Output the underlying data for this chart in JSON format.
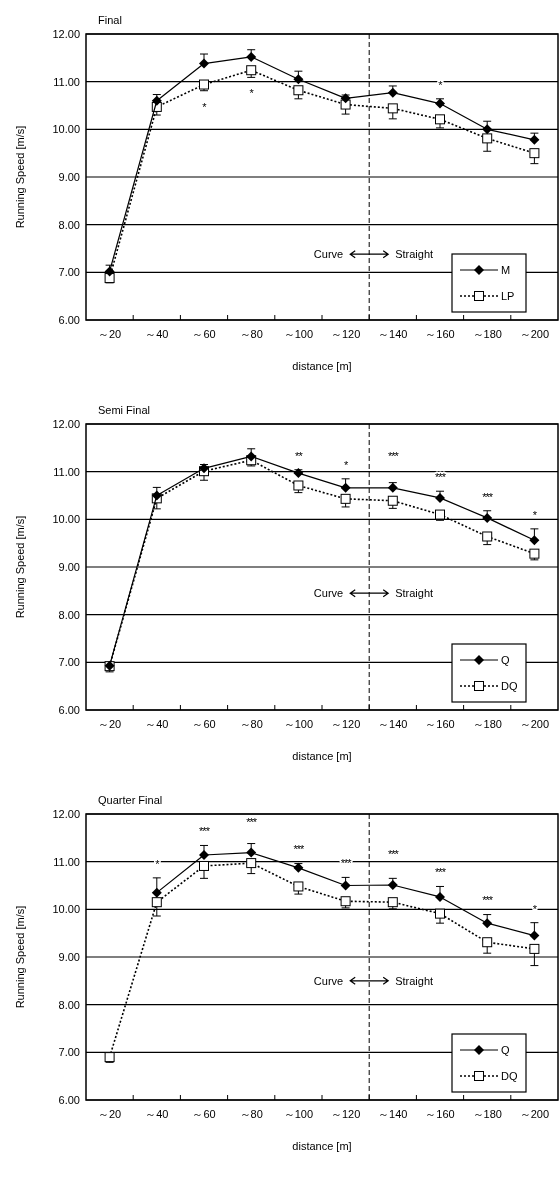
{
  "chart_data": [
    {
      "type": "line",
      "title": "Final",
      "xlabel": "distance [m]",
      "ylabel": "Running Speed [m/s]",
      "x": [
        20,
        40,
        60,
        80,
        100,
        120,
        140,
        160,
        180,
        200
      ],
      "xlim": [
        10,
        210
      ],
      "xticks": [
        {
          "value": 20,
          "label": "～20"
        },
        {
          "value": 40,
          "label": "～40"
        },
        {
          "value": 60,
          "label": "～60"
        },
        {
          "value": 80,
          "label": "～80"
        },
        {
          "value": 100,
          "label": "～100"
        },
        {
          "value": 120,
          "label": "～120"
        },
        {
          "value": 140,
          "label": "～140"
        },
        {
          "value": 160,
          "label": "～160"
        },
        {
          "value": 180,
          "label": "～180"
        },
        {
          "value": 200,
          "label": "～200"
        },
        {
          "value": 30,
          "label": null
        },
        {
          "value": 50,
          "label": null
        },
        {
          "value": 70,
          "label": null
        },
        {
          "value": 90,
          "label": null
        },
        {
          "value": 110,
          "label": null
        },
        {
          "value": 130,
          "label": null
        },
        {
          "value": 150,
          "label": null
        },
        {
          "value": 170,
          "label": null
        },
        {
          "value": 190,
          "label": null
        }
      ],
      "ylim": [
        6,
        12
      ],
      "yticks": [
        {
          "value": 6,
          "label": "6.00"
        },
        {
          "value": 7,
          "label": "7.00"
        },
        {
          "value": 8,
          "label": "8.00"
        },
        {
          "value": 9,
          "label": "9.00"
        },
        {
          "value": 10,
          "label": "10.00"
        },
        {
          "value": 11,
          "label": "11.00"
        },
        {
          "value": 12,
          "label": "12.00"
        }
      ],
      "grid": "y",
      "legend": "bottom right",
      "series": [
        {
          "name": "M",
          "color": "#000000",
          "marker": "diamond",
          "line_style": "solid",
          "values": [
            7.02,
            10.6,
            11.38,
            11.52,
            11.05,
            10.65,
            10.77,
            10.54,
            10.0,
            9.78
          ],
          "errors": [
            [
              7.02,
              7.15
            ],
            [
              10.6,
              10.73
            ],
            [
              11.38,
              11.58
            ],
            [
              11.52,
              11.67
            ],
            [
              11.05,
              11.22
            ],
            [
              10.65,
              10.72
            ],
            [
              10.77,
              10.91
            ],
            [
              10.54,
              10.64
            ],
            [
              10.0,
              10.17
            ],
            [
              9.78,
              9.92
            ]
          ]
        },
        {
          "name": "LP",
          "color": "#000000",
          "marker": "square",
          "line_style": "dotted",
          "values": [
            6.88,
            10.47,
            10.94,
            11.24,
            10.82,
            10.52,
            10.44,
            10.21,
            9.81,
            9.5
          ],
          "errors": [
            [
              6.78,
              6.88
            ],
            [
              10.3,
              10.47
            ],
            [
              10.81,
              10.94
            ],
            [
              11.09,
              11.24
            ],
            [
              10.64,
              10.82
            ],
            [
              10.32,
              10.52
            ],
            [
              10.22,
              10.44
            ],
            [
              10.03,
              10.21
            ],
            [
              9.54,
              9.81
            ],
            [
              9.28,
              9.5
            ]
          ]
        }
      ],
      "ref_lines": [
        {
          "axis": "x",
          "value": 130,
          "line_style": "dashed",
          "color": "#000000"
        }
      ],
      "annotations": [
        {
          "text": "Curve",
          "x": 130,
          "y": 7.38
        },
        {
          "text": "Straight",
          "x": 130,
          "y": 7.38
        },
        {
          "text": "*",
          "x": 60,
          "y": 10.94
        },
        {
          "text": "*",
          "x": 80,
          "y": 11.24
        },
        {
          "text": "*",
          "x": 160,
          "y": 10.54
        }
      ]
    },
    {
      "type": "line",
      "title": "Semi Final",
      "xlabel": "distance [m]",
      "ylabel": "Running Speed [m/s]",
      "x": [
        20,
        40,
        60,
        80,
        100,
        120,
        140,
        160,
        180,
        200
      ],
      "xlim": [
        10,
        210
      ],
      "xticks": [
        {
          "value": 20,
          "label": "～20"
        },
        {
          "value": 40,
          "label": "～40"
        },
        {
          "value": 60,
          "label": "～60"
        },
        {
          "value": 80,
          "label": "～80"
        },
        {
          "value": 100,
          "label": "～100"
        },
        {
          "value": 120,
          "label": "～120"
        },
        {
          "value": 140,
          "label": "～140"
        },
        {
          "value": 160,
          "label": "～160"
        },
        {
          "value": 180,
          "label": "～180"
        },
        {
          "value": 200,
          "label": "～200"
        },
        {
          "value": 30,
          "label": null
        },
        {
          "value": 50,
          "label": null
        },
        {
          "value": 70,
          "label": null
        },
        {
          "value": 90,
          "label": null
        },
        {
          "value": 110,
          "label": null
        },
        {
          "value": 130,
          "label": null
        },
        {
          "value": 150,
          "label": null
        },
        {
          "value": 170,
          "label": null
        },
        {
          "value": 190,
          "label": null
        }
      ],
      "ylim": [
        6,
        12
      ],
      "yticks": [
        {
          "value": 6,
          "label": "6.00"
        },
        {
          "value": 7,
          "label": "7.00"
        },
        {
          "value": 8,
          "label": "8.00"
        },
        {
          "value": 9,
          "label": "9.00"
        },
        {
          "value": 10,
          "label": "10.00"
        },
        {
          "value": 11,
          "label": "11.00"
        },
        {
          "value": 12,
          "label": "12.00"
        }
      ],
      "grid": "y",
      "legend": "bottom right",
      "series": [
        {
          "name": "Q",
          "color": "#000000",
          "marker": "diamond",
          "line_style": "solid",
          "values": [
            6.93,
            10.5,
            11.07,
            11.32,
            10.97,
            10.66,
            10.66,
            10.45,
            10.03,
            9.56
          ],
          "errors": [
            null,
            [
              10.5,
              10.67
            ],
            [
              11.07,
              11.15
            ],
            [
              11.32,
              11.48
            ],
            [
              10.97,
              11.04
            ],
            [
              10.66,
              10.85
            ],
            [
              10.66,
              10.77
            ],
            [
              10.45,
              10.59
            ],
            [
              10.03,
              10.18
            ],
            [
              9.56,
              9.8
            ]
          ]
        },
        {
          "name": "DQ",
          "color": "#000000",
          "marker": "square",
          "line_style": "dotted",
          "values": [
            6.92,
            10.44,
            11.01,
            11.24,
            10.71,
            10.43,
            10.39,
            10.1,
            9.64,
            9.28
          ],
          "errors": [
            [
              6.8,
              6.92
            ],
            [
              10.22,
              10.44
            ],
            [
              10.82,
              11.01
            ],
            [
              11.12,
              11.24
            ],
            [
              10.56,
              10.71
            ],
            [
              10.26,
              10.43
            ],
            [
              10.23,
              10.39
            ],
            [
              9.98,
              10.1
            ],
            [
              9.47,
              9.64
            ],
            [
              9.15,
              9.28
            ]
          ]
        }
      ],
      "ref_lines": [
        {
          "axis": "x",
          "value": 130,
          "line_style": "dashed",
          "color": "#000000"
        }
      ],
      "annotations": [
        {
          "text": "Curve",
          "x": 130,
          "y": 8.45
        },
        {
          "text": "Straight",
          "x": 130,
          "y": 8.45
        },
        {
          "text": "**",
          "x": 100,
          "y": 10.97
        },
        {
          "text": "*",
          "x": 120,
          "y": 10.66
        },
        {
          "text": "***",
          "x": 140,
          "y": 10.66
        },
        {
          "text": "***",
          "x": 160,
          "y": 10.45
        },
        {
          "text": "***",
          "x": 180,
          "y": 10.03
        },
        {
          "text": "*",
          "x": 200,
          "y": 9.56
        }
      ]
    },
    {
      "type": "line",
      "title": "Quarter Final",
      "xlabel": "distance [m]",
      "ylabel": "Running Speed [m/s]",
      "x": [
        20,
        40,
        60,
        80,
        100,
        120,
        140,
        160,
        180,
        200
      ],
      "xlim": [
        10,
        210
      ],
      "xticks": [
        {
          "value": 20,
          "label": "～20"
        },
        {
          "value": 40,
          "label": "～40"
        },
        {
          "value": 60,
          "label": "～60"
        },
        {
          "value": 80,
          "label": "～80"
        },
        {
          "value": 100,
          "label": "～100"
        },
        {
          "value": 120,
          "label": "～120"
        },
        {
          "value": 140,
          "label": "～140"
        },
        {
          "value": 160,
          "label": "～160"
        },
        {
          "value": 180,
          "label": "～180"
        },
        {
          "value": 200,
          "label": "～200"
        },
        {
          "value": 30,
          "label": null
        },
        {
          "value": 50,
          "label": null
        },
        {
          "value": 70,
          "label": null
        },
        {
          "value": 90,
          "label": null
        },
        {
          "value": 110,
          "label": null
        },
        {
          "value": 130,
          "label": null
        },
        {
          "value": 150,
          "label": null
        },
        {
          "value": 170,
          "label": null
        },
        {
          "value": 190,
          "label": null
        }
      ],
      "ylim": [
        6,
        12
      ],
      "yticks": [
        {
          "value": 6,
          "label": "6.00"
        },
        {
          "value": 7,
          "label": "7.00"
        },
        {
          "value": 8,
          "label": "8.00"
        },
        {
          "value": 9,
          "label": "9.00"
        },
        {
          "value": 10,
          "label": "10.00"
        },
        {
          "value": 11,
          "label": "11.00"
        },
        {
          "value": 12,
          "label": "12.00"
        }
      ],
      "grid": "y",
      "legend": "bottom right",
      "series": [
        {
          "name": "Q",
          "color": "#000000",
          "marker": "diamond",
          "line_style": "solid",
          "values": [
            null,
            10.35,
            11.14,
            11.19,
            10.87,
            10.5,
            10.51,
            10.26,
            9.71,
            9.45
          ],
          "errors": [
            null,
            [
              10.35,
              10.66
            ],
            [
              11.14,
              11.34
            ],
            [
              11.19,
              11.38
            ],
            [
              10.87,
              10.96
            ],
            [
              10.5,
              10.67
            ],
            [
              10.51,
              10.65
            ],
            [
              10.26,
              10.48
            ],
            [
              9.71,
              9.89
            ],
            [
              9.45,
              9.72
            ]
          ]
        },
        {
          "name": "DQ",
          "color": "#000000",
          "marker": "square",
          "line_style": "dotted",
          "values": [
            6.9,
            10.15,
            10.91,
            10.97,
            10.48,
            10.17,
            10.15,
            9.91,
            9.31,
            9.17
          ],
          "errors": [
            [
              6.79,
              6.9
            ],
            [
              9.86,
              10.15
            ],
            [
              10.65,
              10.91
            ],
            [
              10.75,
              10.97
            ],
            [
              10.32,
              10.48
            ],
            [
              10.03,
              10.17
            ],
            [
              10.01,
              10.15
            ],
            [
              9.71,
              9.91
            ],
            [
              9.08,
              9.31
            ],
            [
              8.82,
              9.17
            ]
          ]
        }
      ],
      "ref_lines": [
        {
          "axis": "x",
          "value": 130,
          "line_style": "dashed",
          "color": "#000000"
        }
      ],
      "annotations": [
        {
          "text": "Curve",
          "x": 130,
          "y": 8.5
        },
        {
          "text": "Straight",
          "x": 130,
          "y": 8.5
        },
        {
          "text": "*",
          "x": 40,
          "y": 10.35
        },
        {
          "text": "***",
          "x": 60,
          "y": 11.14
        },
        {
          "text": "***",
          "x": 80,
          "y": 11.19
        },
        {
          "text": "***",
          "x": 100,
          "y": 10.87
        },
        {
          "text": "***",
          "x": 120,
          "y": 10.5
        },
        {
          "text": "***",
          "x": 140,
          "y": 10.51
        },
        {
          "text": "***",
          "x": 160,
          "y": 10.26
        },
        {
          "text": "***",
          "x": 180,
          "y": 9.71
        },
        {
          "text": "*",
          "x": 200,
          "y": 9.45
        }
      ]
    }
  ]
}
